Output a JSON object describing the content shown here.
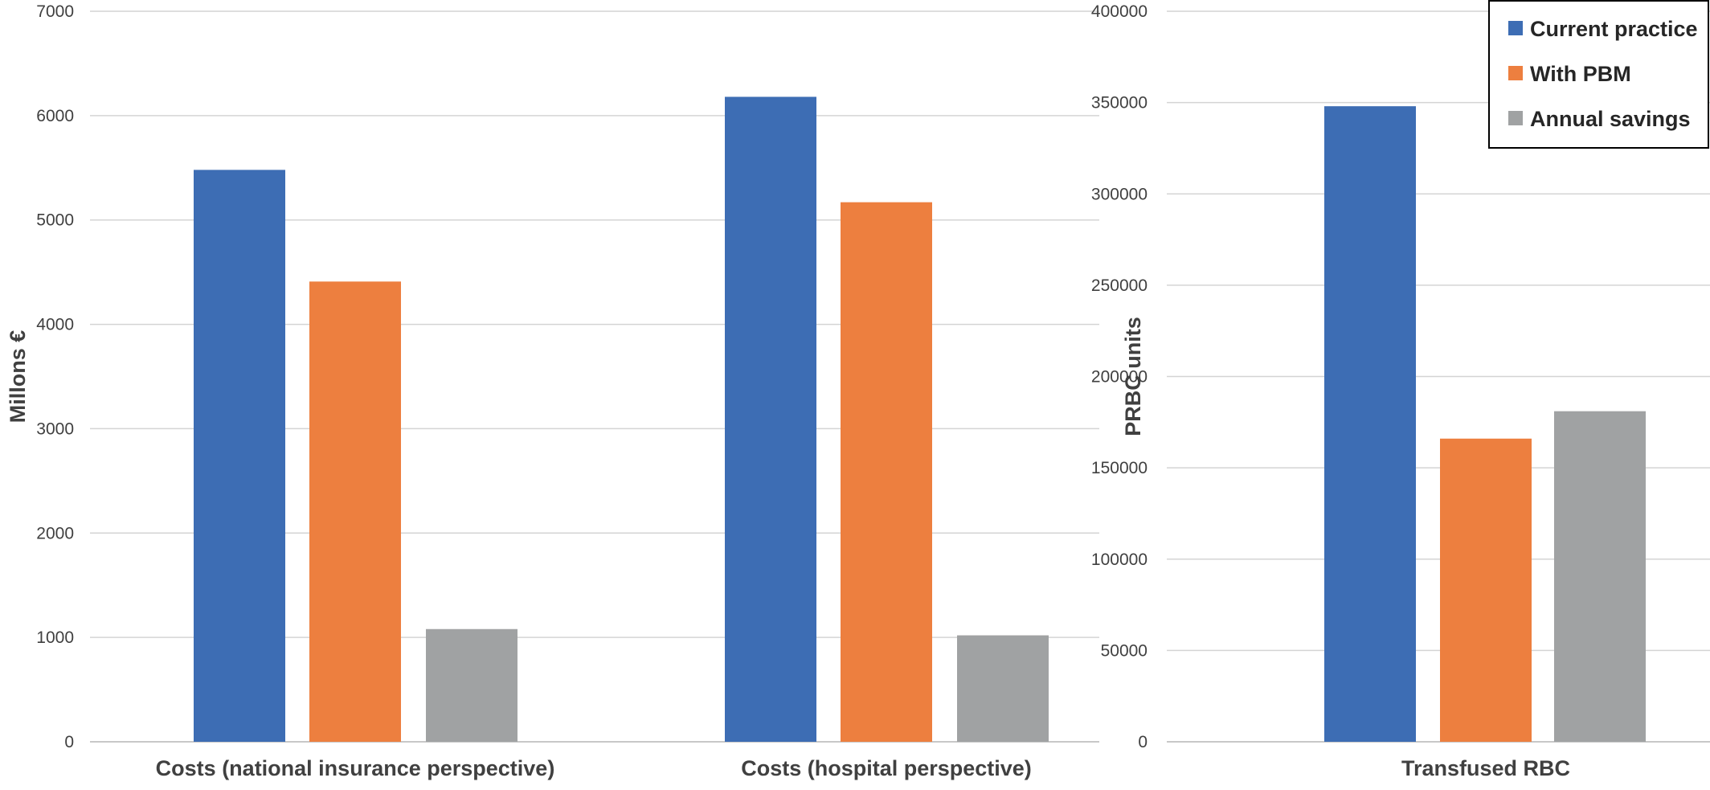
{
  "legend": [
    {
      "label": "Current practice",
      "color": "#3d6db4"
    },
    {
      "label": "With PBM",
      "color": "#ed7f3f"
    },
    {
      "label": "Annual savings",
      "color": "#a0a2a3"
    }
  ],
  "chart_data": [
    {
      "type": "bar",
      "ylabel": "Millons €",
      "xlabel": "",
      "ylim": [
        0,
        7000
      ],
      "yticks": [
        0,
        1000,
        2000,
        3000,
        4000,
        5000,
        6000,
        7000
      ],
      "grid": true,
      "categories": [
        "Costs (national insurance perspective)",
        "Costs (hospital perspective)"
      ],
      "series": [
        {
          "name": "Current practice",
          "values": [
            5480,
            6180
          ]
        },
        {
          "name": "With PBM",
          "values": [
            4410,
            5170
          ]
        },
        {
          "name": "Annual savings",
          "values": [
            1080,
            1020
          ]
        }
      ]
    },
    {
      "type": "bar",
      "ylabel": "PRBC units",
      "xlabel": "",
      "ylim": [
        0,
        400000
      ],
      "yticks": [
        0,
        50000,
        100000,
        150000,
        200000,
        250000,
        300000,
        350000,
        400000
      ],
      "grid": true,
      "legend_position": "top-right",
      "categories": [
        "Transfused RBC"
      ],
      "series": [
        {
          "name": "Current practice",
          "values": [
            348000
          ]
        },
        {
          "name": "With PBM",
          "values": [
            166000
          ]
        },
        {
          "name": "Annual savings",
          "values": [
            181000
          ]
        }
      ]
    }
  ]
}
